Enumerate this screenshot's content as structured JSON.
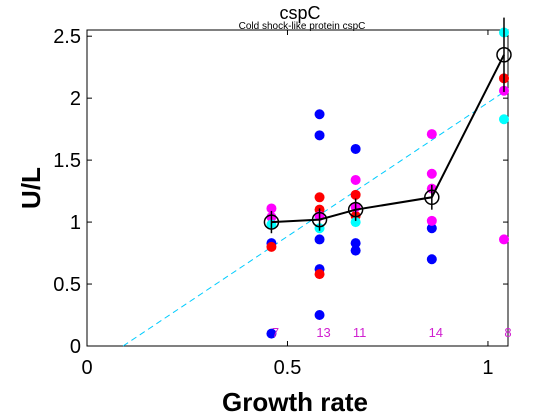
{
  "chart_data": {
    "type": "scatter",
    "title": "cspC",
    "subtitle": "Cold shock-like protein cspC",
    "xlabel": "Growth rate",
    "ylabel": "U/L",
    "xlim": [
      0,
      1.05
    ],
    "ylim": [
      0,
      2.55
    ],
    "x_ticks": [
      "0",
      "0.5",
      "1"
    ],
    "y_ticks": [
      "0",
      "0.5",
      "1",
      "1.5",
      "2",
      "2.5"
    ],
    "grid": false,
    "colors": {
      "blue": "#0000ff",
      "red": "#ff0000",
      "magenta": "#ff00ff",
      "cyan": "#00ffff",
      "mean": "#000000",
      "fit": "#00ccff",
      "counts": "#d020d0"
    },
    "points": {
      "blue": [
        [
          0.46,
          0.1
        ],
        [
          0.46,
          0.83
        ],
        [
          0.58,
          1.87
        ],
        [
          0.58,
          1.7
        ],
        [
          0.58,
          0.62
        ],
        [
          0.58,
          0.86
        ],
        [
          0.58,
          0.25
        ],
        [
          0.67,
          1.59
        ],
        [
          0.67,
          0.83
        ],
        [
          0.67,
          0.77
        ],
        [
          0.86,
          0.95
        ],
        [
          0.86,
          0.7
        ]
      ],
      "red": [
        [
          0.46,
          0.8
        ],
        [
          0.58,
          1.2
        ],
        [
          0.58,
          1.1
        ],
        [
          0.58,
          0.58
        ],
        [
          0.67,
          1.22
        ],
        [
          0.67,
          1.05
        ],
        [
          1.04,
          2.16
        ]
      ],
      "magenta": [
        [
          0.46,
          1.11
        ],
        [
          0.46,
          1.04
        ],
        [
          0.58,
          1.05
        ],
        [
          0.67,
          1.34
        ],
        [
          0.67,
          1.12
        ],
        [
          0.86,
          1.71
        ],
        [
          0.86,
          1.39
        ],
        [
          0.86,
          1.27
        ],
        [
          0.86,
          1.01
        ],
        [
          1.04,
          2.06
        ],
        [
          1.04,
          0.86
        ]
      ],
      "cyan": [
        [
          0.46,
          0.98
        ],
        [
          0.58,
          0.95
        ],
        [
          0.67,
          1.0
        ],
        [
          1.04,
          2.53
        ],
        [
          1.04,
          1.83
        ]
      ]
    },
    "mean_series": {
      "x": [
        0.46,
        0.58,
        0.67,
        0.86,
        1.04
      ],
      "y": [
        1.0,
        1.02,
        1.1,
        1.2,
        2.35
      ],
      "err": [
        0.09,
        0.09,
        0.09,
        0.1,
        0.3
      ]
    },
    "fit_line": {
      "x": [
        0.09,
        1.04
      ],
      "y": [
        0.0,
        2.05
      ]
    },
    "counts": [
      {
        "x": 0.46,
        "label": "7"
      },
      {
        "x": 0.58,
        "label": "13"
      },
      {
        "x": 0.67,
        "label": "11"
      },
      {
        "x": 0.86,
        "label": "14"
      },
      {
        "x": 1.04,
        "label": "8"
      }
    ]
  }
}
